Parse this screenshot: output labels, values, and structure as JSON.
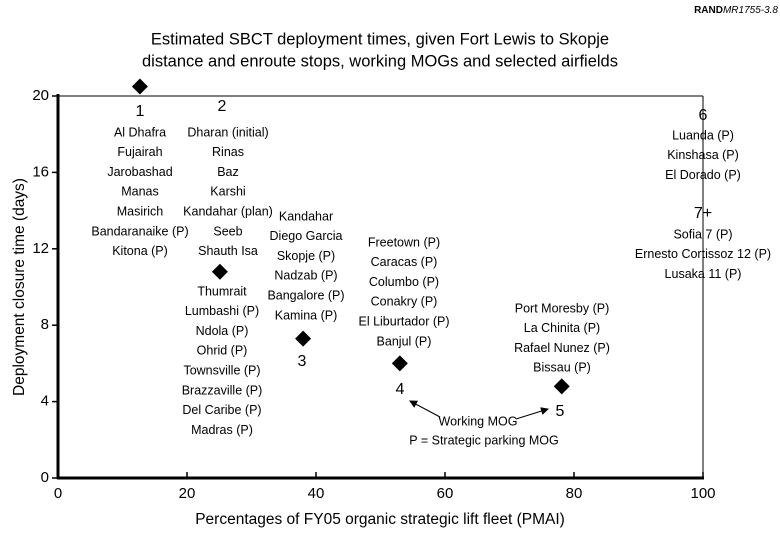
{
  "chart_data": {
    "type": "scatter",
    "header": {
      "bold": "RAND",
      "italic": "MR1755-3.8"
    },
    "title": [
      "Estimated SBCT deployment times, given Fort Lewis to Skopje",
      "distance and enroute stops, working MOGs and selected airfields"
    ],
    "x_label": "Percentages of FY05 organic strategic lift fleet (PMAI)",
    "y_label": "Deployment closure time (days)",
    "xlim": [
      0,
      100
    ],
    "xticks": [
      0,
      20,
      40,
      60,
      80,
      100
    ],
    "ylim": [
      0,
      20
    ],
    "yticks": [
      0,
      4,
      8,
      12,
      16,
      20
    ],
    "color": "#000000",
    "x": [
      12.7,
      25.1,
      38.0,
      53.0,
      78.1
    ],
    "values": [
      20.5,
      10.8,
      7.3,
      6.0,
      4.8
    ],
    "groups": [
      {
        "label": "1",
        "airfields": [
          "Al Dhafra",
          "Fujairah",
          "Jarobashad",
          "Manas",
          "Masirich",
          "Bandaranaike (P)",
          "Kitona (P)"
        ]
      },
      {
        "label": "2",
        "airfields": [
          "Dharan (initial)",
          "Rinas",
          "Baz",
          "Karshi",
          "Kandahar (plan)",
          "Seeb",
          "Shauth Isa",
          "Thumrait",
          "Lumbashi (P)",
          "Ndola (P)",
          "Ohrid (P)",
          "Townsville (P)",
          "Brazzaville (P)",
          "Del Caribe (P)",
          "Madras (P)"
        ]
      },
      {
        "label": "3",
        "airfields": [
          "Kandahar",
          "Diego Garcia",
          "Skopje (P)",
          "Nadzab (P)",
          "Bangalore (P)",
          "Kamina (P)"
        ]
      },
      {
        "label": "4",
        "airfields": [
          "Freetown (P)",
          "Caracas (P)",
          "Columbo (P)",
          "Conakry (P)",
          "El Liburtador (P)",
          "Banjul (P)"
        ]
      },
      {
        "label": "5",
        "airfields": [
          "Port Moresby (P)",
          "La Chinita (P)",
          "Rafael Nunez (P)",
          "Bissau (P)"
        ]
      },
      {
        "label": "6",
        "airfields": [
          "Luanda (P)",
          "Kinshasa (P)",
          "El Dorado (P)"
        ]
      },
      {
        "label": "7+",
        "airfields": [
          "Sofia 7 (P)",
          "Ernesto Cortissoz 12 (P)",
          "Lusaka 11 (P)"
        ]
      }
    ],
    "annotations": [
      "Working MOG",
      "P = Strategic parking MOG"
    ]
  }
}
